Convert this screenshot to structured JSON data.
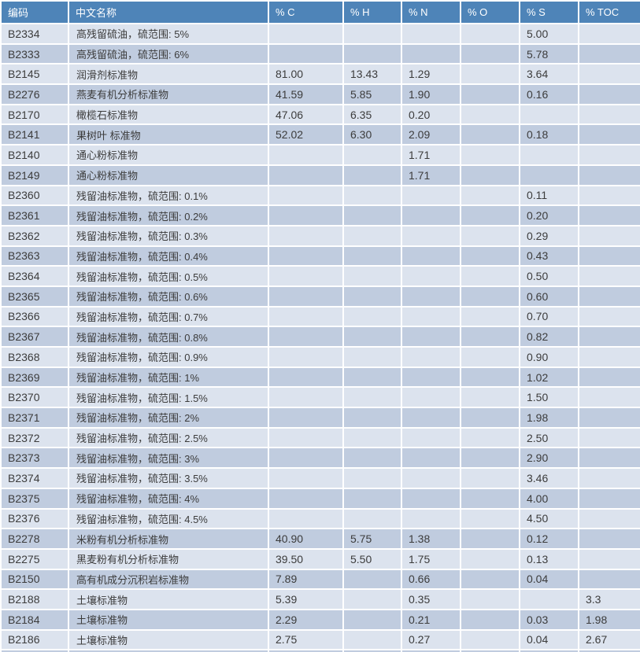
{
  "table": {
    "columns": [
      "编码",
      "中文名称",
      "% C",
      "% H",
      "% N",
      "% O",
      "% S",
      "% TOC"
    ],
    "column_keys": [
      "code",
      "name",
      "pct-c",
      "pct-h",
      "pct-n",
      "pct-o",
      "pct-s",
      "pct-toc"
    ],
    "rows": [
      [
        "B2334",
        "高残留硫油，硫范围: 5%",
        "",
        "",
        "",
        "",
        "5.00",
        ""
      ],
      [
        "B2333",
        "高残留硫油，硫范围: 6%",
        "",
        "",
        "",
        "",
        "5.78",
        ""
      ],
      [
        "B2145",
        "润滑剂标准物",
        "81.00",
        "13.43",
        "1.29",
        "",
        "3.64",
        ""
      ],
      [
        "B2276",
        "燕麦有机分析标准物",
        "41.59",
        "5.85",
        "1.90",
        "",
        "0.16",
        ""
      ],
      [
        "B2170",
        "橄榄石标准物",
        "47.06",
        "6.35",
        "0.20",
        "",
        "",
        ""
      ],
      [
        "B2141",
        "果树叶 标准物",
        "52.02",
        "6.30",
        "2.09",
        "",
        "0.18",
        ""
      ],
      [
        "B2140",
        "通心粉标准物",
        "",
        "",
        "1.71",
        "",
        "",
        ""
      ],
      [
        "B2149",
        "通心粉标准物",
        "",
        "",
        "1.71",
        "",
        "",
        ""
      ],
      [
        "B2360",
        "残留油标准物，硫范围: 0.1%",
        "",
        "",
        "",
        "",
        "0.11",
        ""
      ],
      [
        "B2361",
        "残留油标准物，硫范围: 0.2%",
        "",
        "",
        "",
        "",
        "0.20",
        ""
      ],
      [
        "B2362",
        "残留油标准物，硫范围: 0.3%",
        "",
        "",
        "",
        "",
        "0.29",
        ""
      ],
      [
        "B2363",
        "残留油标准物，硫范围: 0.4%",
        "",
        "",
        "",
        "",
        "0.43",
        ""
      ],
      [
        "B2364",
        "残留油标准物，硫范围: 0.5%",
        "",
        "",
        "",
        "",
        "0.50",
        ""
      ],
      [
        "B2365",
        "残留油标准物，硫范围: 0.6%",
        "",
        "",
        "",
        "",
        "0.60",
        ""
      ],
      [
        "B2366",
        "残留油标准物，硫范围: 0.7%",
        "",
        "",
        "",
        "",
        "0.70",
        ""
      ],
      [
        "B2367",
        "残留油标准物，硫范围: 0.8%",
        "",
        "",
        "",
        "",
        "0.82",
        ""
      ],
      [
        "B2368",
        "残留油标准物，硫范围: 0.9%",
        "",
        "",
        "",
        "",
        "0.90",
        ""
      ],
      [
        "B2369",
        "残留油标准物，硫范围: 1%",
        "",
        "",
        "",
        "",
        "1.02",
        ""
      ],
      [
        "B2370",
        "残留油标准物，硫范围: 1.5%",
        "",
        "",
        "",
        "",
        "1.50",
        ""
      ],
      [
        "B2371",
        "残留油标准物，硫范围: 2%",
        "",
        "",
        "",
        "",
        "1.98",
        ""
      ],
      [
        "B2372",
        "残留油标准物，硫范围: 2.5%",
        "",
        "",
        "",
        "",
        "2.50",
        ""
      ],
      [
        "B2373",
        "残留油标准物，硫范围: 3%",
        "",
        "",
        "",
        "",
        "2.90",
        ""
      ],
      [
        "B2374",
        "残留油标准物，硫范围: 3.5%",
        "",
        "",
        "",
        "",
        "3.46",
        ""
      ],
      [
        "B2375",
        "残留油标准物，硫范围: 4%",
        "",
        "",
        "",
        "",
        "4.00",
        ""
      ],
      [
        "B2376",
        "残留油标准物，硫范围: 4.5%",
        "",
        "",
        "",
        "",
        "4.50",
        ""
      ],
      [
        "B2278",
        "米粉有机分析标准物",
        "40.90",
        "5.75",
        "1.38",
        "",
        "0.12",
        ""
      ],
      [
        "B2275",
        "黑麦粉有机分析标准物",
        "39.50",
        "5.50",
        "1.75",
        "",
        "0.13",
        ""
      ],
      [
        "B2150",
        "高有机成分沉积岩标准物",
        "7.89",
        "",
        "0.66",
        "",
        "0.04",
        ""
      ],
      [
        "B2188",
        "土壤标准物",
        "5.39",
        "",
        "0.35",
        "",
        "",
        "3.3"
      ],
      [
        "B2184",
        "土壤标准物",
        "2.29",
        "",
        "0.21",
        "",
        "0.03",
        "1.98"
      ],
      [
        "B2186",
        "土壤标准物",
        "2.75",
        "",
        "0.27",
        "",
        "0.04",
        "2.67"
      ]
    ]
  },
  "colors": {
    "header_bg": "#4e84b8",
    "header_text": "#ffffff",
    "row_light": "#dce3ee",
    "row_dark": "#c0ccdf",
    "cell_text": "#3c3c3c",
    "grid_line": "#ffffff"
  }
}
